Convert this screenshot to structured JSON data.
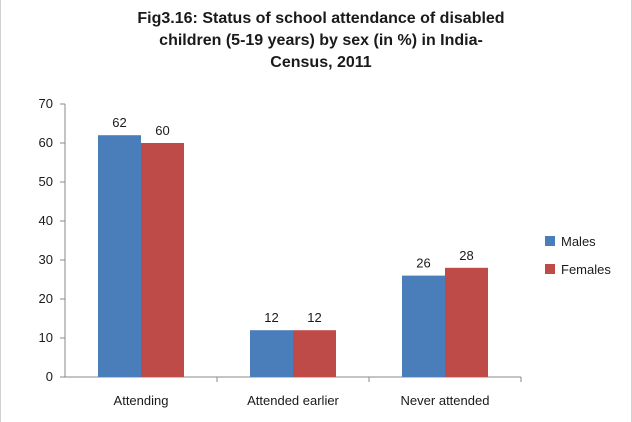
{
  "chart_data": {
    "type": "bar",
    "title_lines": [
      "Fig3.16: Status of school attendance of disabled",
      "children (5-19 years) by sex (in %) in India-",
      "Census, 2011"
    ],
    "categories": [
      "Attending",
      "Attended earlier",
      "Never attended"
    ],
    "series": [
      {
        "name": "Males",
        "values": [
          62,
          12,
          26
        ],
        "color": "#4a7ebb"
      },
      {
        "name": "Females",
        "values": [
          60,
          12,
          28
        ],
        "color": "#be4b48"
      }
    ],
    "ylim": [
      0,
      70
    ],
    "yticks": [
      0,
      10,
      20,
      30,
      40,
      50,
      60,
      70
    ],
    "data_labels": true,
    "legend_position": "right",
    "grid": false
  }
}
